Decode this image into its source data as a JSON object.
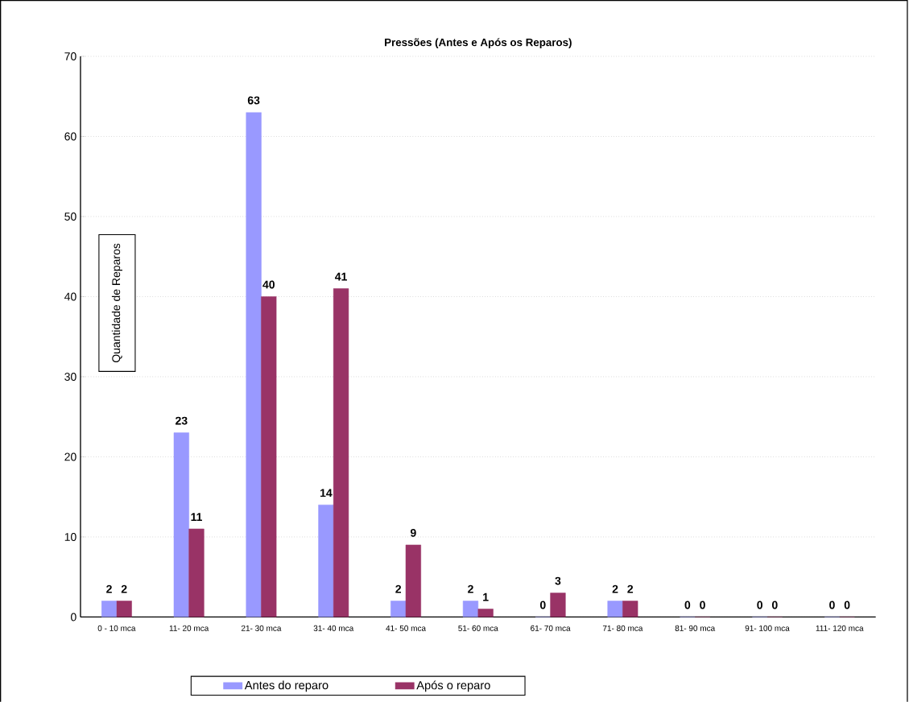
{
  "chart_data": {
    "type": "bar",
    "title": "Pressões (Antes e Após os Reparos)",
    "ylabel": "Quantidade de Reparos",
    "categories": [
      "0 - 10 mca",
      "11- 20 mca",
      "21- 30 mca",
      "31- 40 mca",
      "41- 50 mca",
      "51- 60 mca",
      "61- 70 mca",
      "71- 80 mca",
      "81- 90 mca",
      "91- 100 mca",
      "111- 120 mca"
    ],
    "series": [
      {
        "name": "Antes do reparo",
        "color": "#9999ff",
        "values": [
          2,
          23,
          63,
          14,
          2,
          2,
          0,
          2,
          0,
          0,
          0
        ]
      },
      {
        "name": "Após o reparo",
        "color": "#993366",
        "values": [
          2,
          11,
          40,
          41,
          9,
          1,
          3,
          2,
          0,
          0,
          0
        ]
      }
    ],
    "ylim": [
      0,
      70
    ],
    "yticks": [
      0,
      10,
      20,
      30,
      40,
      50,
      60,
      70
    ],
    "grid": "y",
    "legend": "bottom",
    "data_labels": true
  }
}
